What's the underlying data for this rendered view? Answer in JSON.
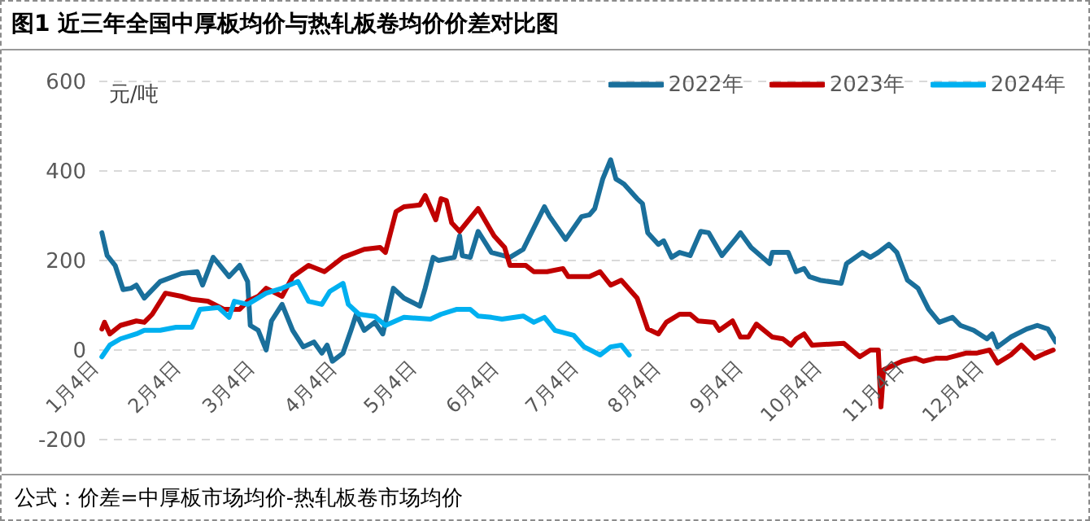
{
  "chart_data": {
    "type": "line",
    "title": "图1  近三年全国中厚板均价与热轧板卷均价价差对比图",
    "ylabel": "元/吨",
    "annotations": [
      "公式：价差=中厚板市场均价-热轧板卷市场均价"
    ],
    "xlim": [
      "--01-04",
      "--12-31"
    ],
    "xticks": [
      {
        "value": "--01-04",
        "label": "1月4日"
      },
      {
        "value": "--02-04",
        "label": "2月4日"
      },
      {
        "value": "--03-04",
        "label": "3月4日"
      },
      {
        "value": "--04-04",
        "label": "4月4日"
      },
      {
        "value": "--05-04",
        "label": "5月4日"
      },
      {
        "value": "--06-04",
        "label": "6月4日"
      },
      {
        "value": "--07-04",
        "label": "7月4日"
      },
      {
        "value": "--08-04",
        "label": "8月4日"
      },
      {
        "value": "--09-04",
        "label": "9月4日"
      },
      {
        "value": "--10-04",
        "label": "10月4日"
      },
      {
        "value": "--11-04",
        "label": "11月4日"
      },
      {
        "value": "--12-04",
        "label": "12月4日"
      }
    ],
    "ylim": [
      -200,
      600
    ],
    "yticks": [
      -200,
      0,
      200,
      400,
      600
    ],
    "grid": "y",
    "legend": "top right",
    "marker": "none",
    "line_style": "solid",
    "series": [
      {
        "name": "2022年",
        "color": "#1a6f9b",
        "x": [
          "--01-05",
          "--01-07",
          "--01-10",
          "--01-13",
          "--01-16",
          "--01-18",
          "--01-21",
          "--01-27",
          "--02-04",
          "--02-10",
          "--02-12",
          "--02-16",
          "--02-18",
          "--02-22",
          "--02-26",
          "--03-01",
          "--03-02",
          "--03-05",
          "--03-08",
          "--03-10",
          "--03-14",
          "--03-18",
          "--03-22",
          "--03-26",
          "--03-29",
          "--03-31",
          "--04-02",
          "--04-06",
          "--04-09",
          "--04-11",
          "--04-14",
          "--04-18",
          "--04-21",
          "--04-25",
          "--04-29",
          "--05-05",
          "--05-07",
          "--05-10",
          "--05-12",
          "--05-18",
          "--05-20",
          "--05-21",
          "--05-24",
          "--05-27",
          "--06-01",
          "--06-08",
          "--06-13",
          "--06-21",
          "--06-23",
          "--06-29",
          "--07-05",
          "--07-08",
          "--07-10",
          "--07-13",
          "--07-16",
          "--07-18",
          "--07-21",
          "--07-26",
          "--07-28",
          "--07-30",
          "--08-03",
          "--08-05",
          "--08-08",
          "--08-11",
          "--08-15",
          "--08-19",
          "--08-22",
          "--08-27",
          "--09-01",
          "--09-03",
          "--09-07",
          "--09-14",
          "--09-15",
          "--09-21",
          "--09-24",
          "--09-27",
          "--09-29",
          "--10-03",
          "--10-11",
          "--10-13",
          "--10-19",
          "--10-22",
          "--10-25",
          "--10-29",
          "--11-01",
          "--11-05",
          "--11-09",
          "--11-13",
          "--11-17",
          "--11-22",
          "--11-25",
          "--11-30",
          "--12-05",
          "--12-07",
          "--12-09",
          "--12-14",
          "--12-20",
          "--12-24",
          "--12-28",
          "--12-31"
        ],
        "values": [
          262,
          211,
          189,
          135,
          138,
          145,
          116,
          153,
          171,
          175,
          145,
          207,
          193,
          164,
          189,
          153,
          55,
          44,
          0,
          65,
          102,
          44,
          7,
          18,
          -7,
          11,
          -25,
          -7,
          44,
          80,
          44,
          62,
          36,
          138,
          116,
          98,
          138,
          207,
          200,
          207,
          255,
          211,
          207,
          265,
          218,
          207,
          225,
          320,
          298,
          247,
          298,
          302,
          316,
          382,
          425,
          382,
          371,
          338,
          327,
          262,
          236,
          244,
          207,
          218,
          211,
          265,
          262,
          211,
          247,
          262,
          229,
          193,
          218,
          218,
          175,
          182,
          164,
          156,
          149,
          193,
          218,
          207,
          218,
          236,
          218,
          156,
          138,
          91,
          62,
          73,
          55,
          44,
          25,
          36,
          7,
          29,
          47,
          55,
          47,
          18
        ]
      },
      {
        "name": "2023年",
        "color": "#c00000",
        "x": [
          "--01-05",
          "--01-06",
          "--01-08",
          "--01-12",
          "--01-18",
          "--01-21",
          "--01-24",
          "--01-29",
          "--02-04",
          "--02-08",
          "--02-14",
          "--02-20",
          "--02-26",
          "--03-01",
          "--03-05",
          "--03-08",
          "--03-14",
          "--03-18",
          "--03-24",
          "--03-30",
          "--04-06",
          "--04-14",
          "--04-20",
          "--04-22",
          "--04-26",
          "--04-29",
          "--05-05",
          "--05-07",
          "--05-11",
          "--05-13",
          "--05-15",
          "--05-17",
          "--05-20",
          "--05-27",
          "--06-02",
          "--06-06",
          "--06-08",
          "--06-14",
          "--06-17",
          "--06-22",
          "--06-28",
          "--06-30",
          "--07-08",
          "--07-12",
          "--07-16",
          "--07-20",
          "--07-26",
          "--07-30",
          "--08-03",
          "--08-06",
          "--08-11",
          "--08-15",
          "--08-18",
          "--08-24",
          "--08-26",
          "--08-31",
          "--09-03",
          "--09-06",
          "--09-09",
          "--09-15",
          "--09-19",
          "--09-22",
          "--09-24",
          "--09-27",
          "--09-30",
          "--10-12",
          "--10-18",
          "--10-22",
          "--10-25",
          "--10-26",
          "--10-27",
          "--10-30",
          "--11-03",
          "--11-08",
          "--11-11",
          "--11-16",
          "--11-20",
          "--11-27",
          "--12-01",
          "--12-06",
          "--12-09",
          "--12-14",
          "--12-18",
          "--12-23",
          "--12-27",
          "--12-30"
        ],
        "values": [
          47,
          62,
          36,
          55,
          65,
          62,
          80,
          127,
          120,
          113,
          109,
          91,
          91,
          109,
          120,
          138,
          120,
          164,
          189,
          175,
          207,
          225,
          229,
          218,
          309,
          320,
          324,
          345,
          291,
          338,
          334,
          284,
          265,
          316,
          255,
          229,
          189,
          189,
          175,
          175,
          182,
          164,
          164,
          175,
          145,
          156,
          116,
          47,
          36,
          62,
          80,
          80,
          65,
          62,
          44,
          65,
          29,
          29,
          58,
          29,
          25,
          11,
          25,
          36,
          11,
          15,
          -15,
          0,
          0,
          -127,
          -44,
          -36,
          -25,
          -18,
          -25,
          -18,
          -18,
          -7,
          -7,
          0,
          -29,
          -11,
          11,
          -18,
          -7,
          0
        ]
      },
      {
        "name": "2024年",
        "color": "#00b0f0",
        "x": [
          "--01-05",
          "--01-08",
          "--01-12",
          "--01-18",
          "--01-21",
          "--01-27",
          "--02-02",
          "--02-08",
          "--02-11",
          "--02-18",
          "--02-22",
          "--02-24",
          "--03-01",
          "--03-08",
          "--03-14",
          "--03-20",
          "--03-24",
          "--03-29",
          "--04-01",
          "--04-06",
          "--04-08",
          "--04-12",
          "--04-18",
          "--04-22",
          "--04-29",
          "--05-09",
          "--05-13",
          "--05-19",
          "--05-24",
          "--05-27",
          "--06-01",
          "--06-05",
          "--06-13",
          "--06-17",
          "--06-21",
          "--06-25",
          "--07-02",
          "--07-06",
          "--07-12",
          "--07-16",
          "--07-20",
          "--07-23"
        ],
        "values": [
          -15,
          11,
          25,
          36,
          44,
          44,
          51,
          51,
          91,
          95,
          73,
          109,
          102,
          127,
          138,
          153,
          109,
          102,
          131,
          149,
          102,
          80,
          75,
          55,
          73,
          69,
          80,
          91,
          91,
          76,
          73,
          69,
          76,
          62,
          73,
          44,
          33,
          7,
          -11,
          7,
          11,
          -11
        ]
      }
    ]
  }
}
